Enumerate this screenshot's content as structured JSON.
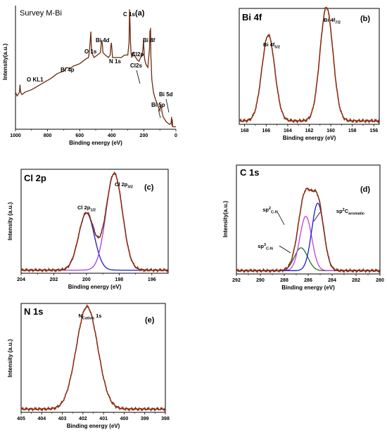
{
  "chart_data": [
    {
      "id": "a",
      "type": "line",
      "title": "Survey M-Bi",
      "panel_tag": "(a)",
      "xlabel": "Binding energy (eV)",
      "ylabel": "Intensity(a.u.)",
      "xlim": [
        1000,
        0
      ],
      "xticks": [
        1000,
        800,
        600,
        400,
        200,
        0
      ],
      "x_reversed": true,
      "frame": "left-bottom",
      "series": [
        {
          "color": "#6b2b10",
          "x": [
            1000,
            990,
            975,
            972,
            968,
            960,
            940,
            900,
            860,
            820,
            780,
            740,
            700,
            680,
            660,
            640,
            620,
            600,
            580,
            560,
            545,
            540,
            535,
            530,
            528,
            525,
            510,
            490,
            470,
            465,
            462,
            458,
            455,
            440,
            420,
            410,
            405,
            402,
            399,
            395,
            380,
            360,
            340,
            320,
            300,
            292,
            289,
            286,
            283,
            280,
            275,
            270,
            265,
            260,
            250,
            240,
            230,
            220,
            210,
            205,
            202,
            199,
            196,
            192,
            185,
            175,
            165,
            162,
            160,
            158,
            156,
            150,
            140,
            130,
            120,
            110,
            100,
            95,
            90,
            85,
            80,
            70,
            60,
            50,
            40,
            30,
            27,
            25,
            23,
            20,
            15,
            10,
            5,
            0
          ],
          "y": [
            0.3,
            0.27,
            0.3,
            0.36,
            0.3,
            0.28,
            0.3,
            0.32,
            0.35,
            0.38,
            0.41,
            0.45,
            0.47,
            0.5,
            0.49,
            0.51,
            0.52,
            0.53,
            0.55,
            0.57,
            0.58,
            0.62,
            0.7,
            0.79,
            0.7,
            0.62,
            0.58,
            0.6,
            0.62,
            0.7,
            0.72,
            0.68,
            0.62,
            0.6,
            0.58,
            0.6,
            0.68,
            0.7,
            0.65,
            0.58,
            0.58,
            0.58,
            0.58,
            0.6,
            0.6,
            0.7,
            0.97,
            0.86,
            0.7,
            0.62,
            0.58,
            0.6,
            0.62,
            0.6,
            0.58,
            0.56,
            0.55,
            0.58,
            0.6,
            0.66,
            0.72,
            0.65,
            0.58,
            0.55,
            0.52,
            0.5,
            0.65,
            0.8,
            0.7,
            0.82,
            0.6,
            0.4,
            0.3,
            0.25,
            0.22,
            0.18,
            0.15,
            0.2,
            0.17,
            0.13,
            0.1,
            0.08,
            0.06,
            0.05,
            0.04,
            0.05,
            0.1,
            0.03,
            0.08,
            0.02,
            0.02,
            0.02,
            0.02,
            0.02
          ]
        }
      ],
      "annotations": [
        "O KL1",
        "Bi 4p",
        "O 1s",
        "Bi 4d",
        "N 1s",
        "C 1s",
        "Bi 4f",
        "Cl2p",
        "Cl2s",
        "Bi 5d",
        "Bi 5p"
      ]
    },
    {
      "id": "b",
      "type": "line",
      "title": "Bi 4f",
      "panel_tag": "(b)",
      "xlabel": "Binding energy (eV)",
      "xlim": [
        168.5,
        155.5
      ],
      "xticks": [
        168,
        166,
        164,
        162,
        160,
        158,
        156
      ],
      "x_reversed": true,
      "frame": "box",
      "peaks": [
        {
          "center": 165.8,
          "height": 0.74,
          "sigma": 0.6
        },
        {
          "center": 160.4,
          "height": 0.98,
          "sigma": 0.6
        }
      ],
      "series": [
        {
          "kind": "sum",
          "color": "#8b2d12"
        }
      ],
      "annotations": [
        {
          "text": "Bi 4f",
          "sub": "5/2"
        },
        {
          "text": "Bi 4f",
          "sub": "7/2"
        }
      ]
    },
    {
      "id": "c",
      "type": "line",
      "title": "Cl 2p",
      "panel_tag": "(c)",
      "xlabel": "Binding energy (eV)",
      "ylabel": "Intensity (a.u.)",
      "xlim": [
        204,
        195
      ],
      "xticks": [
        204,
        202,
        200,
        198,
        196
      ],
      "x_reversed": true,
      "frame": "box",
      "peaks": [
        {
          "center": 200.0,
          "height": 0.55,
          "sigma": 0.48
        },
        {
          "center": 198.3,
          "height": 0.93,
          "sigma": 0.5
        }
      ],
      "series": [
        {
          "kind": "peak",
          "index": 0,
          "color": "#1a1ad0"
        },
        {
          "kind": "peak",
          "index": 1,
          "color": "#a040d8"
        },
        {
          "kind": "sum",
          "color": "#8b2d12"
        }
      ],
      "annotations": [
        {
          "text": "Cl 2p",
          "sub": "1/2"
        },
        {
          "text": "Cl 2p",
          "sub": "3/2"
        }
      ]
    },
    {
      "id": "d",
      "type": "line",
      "title": "C 1s",
      "panel_tag": "(d)",
      "xlabel": "Binding energy (eV)",
      "ylabel": "Intensity(a.u.)",
      "xlim": [
        292,
        280
      ],
      "xticks": [
        292,
        290,
        288,
        286,
        284,
        282,
        280
      ],
      "x_reversed": true,
      "frame": "box",
      "peaks": [
        {
          "center": 286.6,
          "height": 0.21,
          "sigma": 0.55
        },
        {
          "center": 286.2,
          "height": 0.5,
          "sigma": 0.5
        },
        {
          "center": 285.2,
          "height": 0.62,
          "sigma": 0.5
        }
      ],
      "series": [
        {
          "kind": "peak",
          "index": 0,
          "color": "#2a6e18"
        },
        {
          "kind": "peak",
          "index": 1,
          "color": "#c040e0"
        },
        {
          "kind": "peak",
          "index": 2,
          "color": "#1a1ad0"
        },
        {
          "kind": "sum",
          "color": "#8b2d12"
        }
      ],
      "annotations": [
        {
          "text": "sp",
          "sup": "2",
          "sub": "C-N"
        },
        {
          "text": "sp",
          "sup": "2",
          "main": "C",
          "sub": "aromatic"
        },
        {
          "text": "sp",
          "sup": "3",
          "sub": "C-N"
        }
      ]
    },
    {
      "id": "e",
      "type": "line",
      "title": "N 1s",
      "panel_tag": "(e)",
      "xlabel": "Binding energy (eV)",
      "ylabel": "Intensity (a.u.)",
      "xlim": [
        405,
        398
      ],
      "xticks": [
        405,
        404,
        403,
        402,
        401,
        400,
        399,
        398
      ],
      "x_reversed": true,
      "frame": "box",
      "peaks": [
        {
          "center": 401.8,
          "height": 0.94,
          "sigma": 0.52
        }
      ],
      "series": [
        {
          "kind": "sum",
          "color": "#8b2d12"
        }
      ],
      "annotations": [
        {
          "text": "N",
          "sub": "Cation",
          "after": " 1s"
        }
      ]
    }
  ]
}
